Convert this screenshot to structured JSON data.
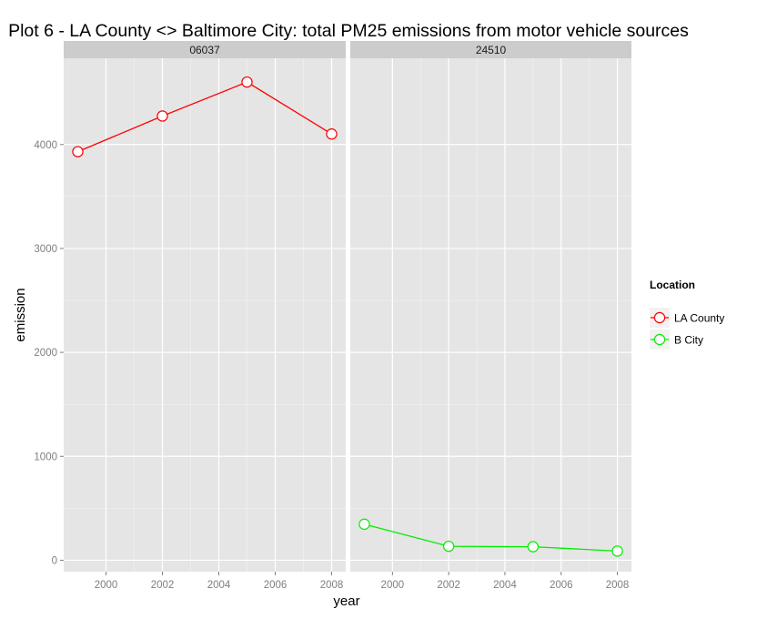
{
  "chart_data": {
    "type": "line",
    "title": "Plot 6 - LA County <> Baltimore City: total PM25 emissions from motor vehicle sources",
    "xlabel": "year",
    "ylabel": "emission",
    "x_ticks": [
      2000,
      2002,
      2004,
      2006,
      2008
    ],
    "y_ticks": [
      0,
      1000,
      2000,
      3000,
      4000
    ],
    "xlim": [
      1998.5,
      2008.5
    ],
    "ylim": [
      -110,
      4830
    ],
    "grid": true,
    "panels": [
      {
        "strip": "06037",
        "series": [
          {
            "name": "LA County",
            "color": "#ff0000",
            "x": [
              1999,
              2002,
              2005,
              2008
            ],
            "y": [
              3931,
              4274,
              4601,
              4101
            ]
          }
        ]
      },
      {
        "strip": "24510",
        "series": [
          {
            "name": "B City",
            "color": "#00ee00",
            "x": [
              1999,
              2002,
              2005,
              2008
            ],
            "y": [
              347,
              134,
              130,
              88
            ]
          }
        ]
      }
    ],
    "legend": {
      "title": "Location",
      "position": "right",
      "items": [
        {
          "label": "LA County",
          "color": "#ff0000"
        },
        {
          "label": "B City",
          "color": "#00ee00"
        }
      ]
    }
  }
}
